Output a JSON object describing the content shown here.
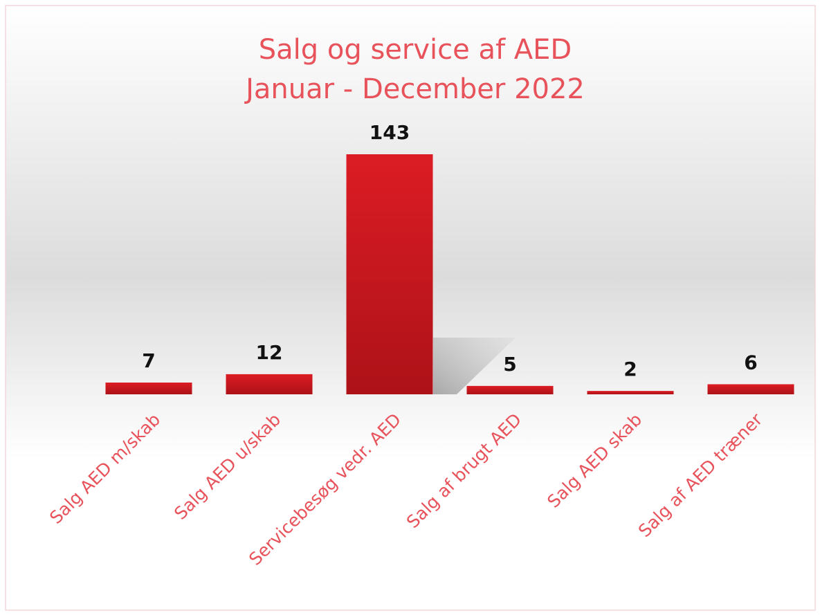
{
  "chart_data": {
    "type": "bar",
    "title": "Salg og service af AED",
    "subtitle": "Januar - December 2022",
    "categories": [
      "Salg AED m/skab",
      "Salg AED u/skab",
      "Servicebesøg vedr. AED",
      "Salg af brugt AED",
      "Salg AED skab",
      "Salg af AED træner"
    ],
    "values": [
      7,
      12,
      143,
      5,
      2,
      6
    ],
    "color": "#c8161c"
  }
}
